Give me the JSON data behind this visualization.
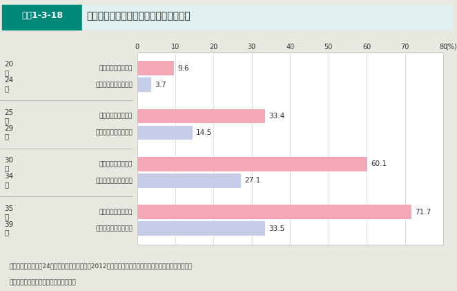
{
  "title": "図表1-3-18　雇用形態別の配偶者がいる割合（男性）",
  "title_box_label": "図表1-3-18",
  "title_main": "雇用形態別の配偶者がいる割合（男性）",
  "age_groups": [
    "20\n〜\n24\n歳",
    "25\n〜\n29\n歳",
    "30\n〜\n34\n歳",
    "35\n〜\n39\n歳"
  ],
  "age_labels_left": [
    "20\n〜\n24\n歳",
    "25\n〜\n29\n歳",
    "30\n〜\n34\n歳",
    "35\n〜\n39\n歳"
  ],
  "bar_labels": [
    "正規の職員・従業員",
    "非正規の職員・従業員"
  ],
  "values_regular": [
    9.6,
    33.4,
    60.1,
    71.7
  ],
  "values_nonregular": [
    3.7,
    14.5,
    27.1,
    33.5
  ],
  "color_regular": "#F4A7B4",
  "color_nonregular": "#C5CDE8",
  "xlim": [
    0,
    80
  ],
  "xticks": [
    0,
    10,
    20,
    30,
    40,
    50,
    60,
    70,
    80
  ],
  "xlabel_suffix": "(%)",
  "bar_height": 0.35,
  "background_color": "#E8E8E0",
  "plot_bg_color": "#FFFFFF",
  "footer_line1": "資料：総務省「平成24年就業構造基本調査」（2012年）より厚生労働省政策統括官付政策評価官室作成",
  "footer_line2": "（注）「死別・離別」「不詳」を含む。",
  "header_box_color": "#00897B",
  "header_bg_color": "#E0F0EE"
}
